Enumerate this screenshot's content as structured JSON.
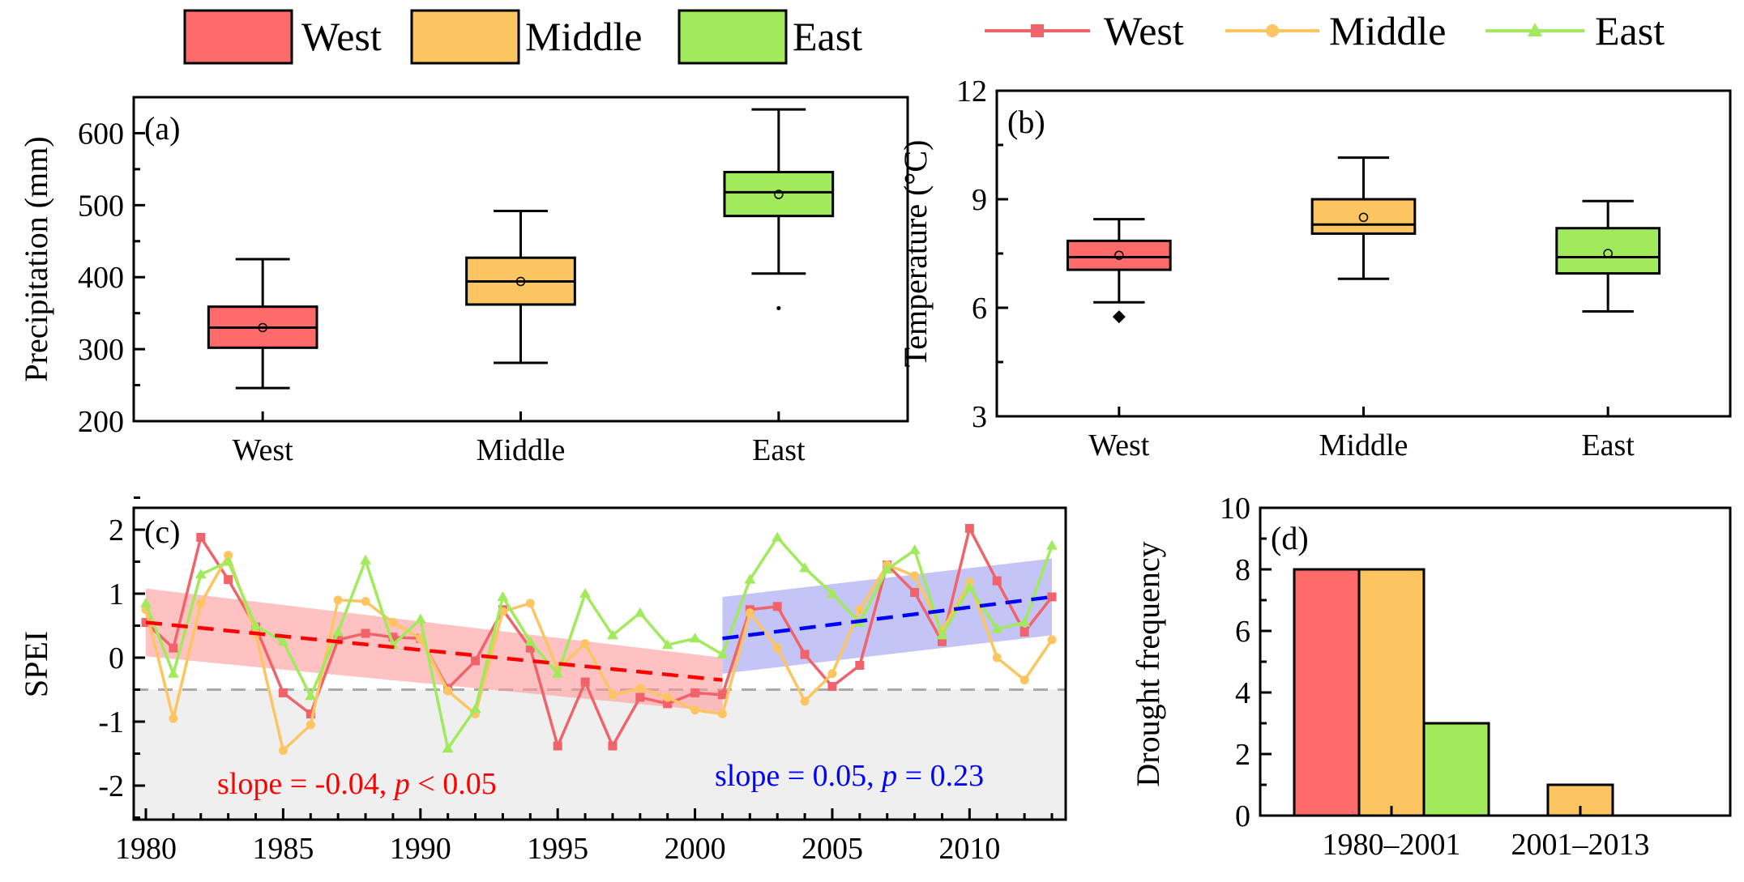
{
  "legend_box": {
    "items": [
      {
        "label": "West",
        "color": "#ff6b6b"
      },
      {
        "label": "Middle",
        "color": "#fcc561"
      },
      {
        "label": "East",
        "color": "#a0ea5c"
      }
    ]
  },
  "legend_line": {
    "items": [
      {
        "label": "West",
        "color": "#f0636b",
        "marker": "square"
      },
      {
        "label": "Middle",
        "color": "#fcc561",
        "marker": "circle"
      },
      {
        "label": "East",
        "color": "#a0ea5c",
        "marker": "triangle"
      }
    ]
  },
  "chart_data": [
    {
      "panel": "(a)",
      "type": "box",
      "ylabel": "Precipitation (mm)",
      "ylim": [
        200,
        650
      ],
      "yticks": [
        "200",
        "300",
        "400",
        "500",
        "600"
      ],
      "categories": [
        "West",
        "Middle",
        "East"
      ],
      "colors": [
        "#ff6b6b",
        "#fcc561",
        "#a0ea5c"
      ],
      "boxes": [
        {
          "min": 246,
          "q1": 302,
          "median": 330,
          "q3": 359,
          "max": 425,
          "mean": 330,
          "outliers": []
        },
        {
          "min": 281,
          "q1": 362,
          "median": 394,
          "q3": 427,
          "max": 492,
          "mean": 394,
          "outliers": []
        },
        {
          "min": 405,
          "q1": 485,
          "median": 518,
          "q3": 546,
          "max": 633,
          "mean": 515,
          "outliers": [
            357
          ]
        }
      ]
    },
    {
      "panel": "(b)",
      "type": "box",
      "ylabel": "Temperature (°C)",
      "ylim": [
        3,
        12
      ],
      "yticks": [
        "3",
        "6",
        "9",
        "12"
      ],
      "categories": [
        "West",
        "Middle",
        "East"
      ],
      "colors": [
        "#ff6b6b",
        "#fcc561",
        "#a0ea5c"
      ],
      "boxes": [
        {
          "min": 6.15,
          "q1": 7.05,
          "median": 7.4,
          "q3": 7.85,
          "max": 8.45,
          "mean": 7.45,
          "outliers": [
            5.75
          ]
        },
        {
          "min": 6.8,
          "q1": 8.05,
          "median": 8.3,
          "q3": 9.0,
          "max": 10.15,
          "mean": 8.5,
          "outliers": []
        },
        {
          "min": 5.9,
          "q1": 6.95,
          "median": 7.4,
          "q3": 8.2,
          "max": 8.95,
          "mean": 7.5,
          "outliers": []
        }
      ]
    },
    {
      "panel": "(c)",
      "type": "line",
      "ylabel": "SPEI",
      "xlim": [
        1980,
        2013
      ],
      "ylim": [
        -2.5,
        2.5
      ],
      "xticks": [
        "1980",
        "1985",
        "1990",
        "1995",
        "2000",
        "2005",
        "2010"
      ],
      "yticks": [
        "2",
        "1",
        "0",
        "-1",
        "-2"
      ],
      "drought_threshold": -0.5,
      "x": [
        1980,
        1981,
        1982,
        1983,
        1984,
        1985,
        1986,
        1987,
        1988,
        1989,
        1990,
        1991,
        1992,
        1993,
        1994,
        1995,
        1996,
        1997,
        1998,
        1999,
        2000,
        2001,
        2002,
        2003,
        2004,
        2005,
        2006,
        2007,
        2008,
        2009,
        2010,
        2011,
        2012,
        2013
      ],
      "series": [
        {
          "name": "West",
          "color": "#f0636b",
          "marker": "square",
          "values": [
            0.55,
            0.15,
            1.88,
            1.22,
            0.48,
            -0.55,
            -0.88,
            0.28,
            0.38,
            0.32,
            0.3,
            -0.48,
            -0.05,
            0.75,
            0.15,
            -1.38,
            -0.38,
            -1.38,
            -0.62,
            -0.72,
            -0.55,
            -0.58,
            0.75,
            0.8,
            0.05,
            -0.45,
            -0.12,
            1.45,
            1.02,
            0.25,
            2.02,
            1.2,
            0.4,
            0.95
          ]
        },
        {
          "name": "Middle",
          "color": "#fcc561",
          "marker": "circle",
          "values": [
            0.75,
            -0.95,
            0.85,
            1.6,
            0.38,
            -1.45,
            -1.05,
            0.9,
            0.88,
            0.55,
            0.3,
            -0.52,
            -0.88,
            0.72,
            0.85,
            -0.18,
            0.22,
            -0.58,
            -0.48,
            -0.62,
            -0.82,
            -0.88,
            0.7,
            0.15,
            -0.68,
            -0.25,
            0.75,
            1.45,
            1.28,
            0.42,
            1.18,
            0.0,
            -0.35,
            0.28
          ]
        },
        {
          "name": "East",
          "color": "#a0ea5c",
          "marker": "triangle",
          "values": [
            0.85,
            -0.25,
            1.3,
            1.5,
            0.5,
            0.25,
            -0.6,
            0.4,
            1.52,
            0.2,
            0.6,
            -1.42,
            -0.8,
            0.95,
            0.25,
            -0.25,
            1.0,
            0.35,
            0.7,
            0.2,
            0.3,
            0.05,
            1.22,
            1.88,
            1.4,
            1.0,
            0.55,
            1.38,
            1.68,
            0.35,
            1.1,
            0.45,
            0.55,
            1.75
          ]
        }
      ],
      "trends": [
        {
          "x": [
            1980,
            2001
          ],
          "y": [
            0.55,
            -0.35
          ],
          "ci_low": [
            0.02,
            -0.85
          ],
          "ci_high": [
            1.08,
            0.0
          ],
          "color": "#ff0000",
          "band": "#ff9a9a",
          "label_slope": "slope = -0.04, ",
          "label_p": "p",
          "label_rest": " < 0.05"
        },
        {
          "x": [
            2001,
            2013
          ],
          "y": [
            0.3,
            0.95
          ],
          "ci_low": [
            -0.25,
            0.35
          ],
          "ci_high": [
            0.95,
            1.55
          ],
          "color": "#0000ff",
          "band": "#9c9cf2",
          "label_slope": "slope = 0.05, ",
          "label_p": "p",
          "label_rest": " = 0.23"
        }
      ]
    },
    {
      "panel": "(d)",
      "type": "bar",
      "ylabel": "Drought frequency",
      "ylim": [
        0,
        10
      ],
      "yticks": [
        "0",
        "2",
        "4",
        "6",
        "8",
        "10"
      ],
      "categories": [
        "1980–2001",
        "2001–2013"
      ],
      "series": [
        {
          "name": "West",
          "color": "#ff6b6b",
          "values": [
            8,
            0
          ]
        },
        {
          "name": "Middle",
          "color": "#fcc561",
          "values": [
            8,
            1
          ]
        },
        {
          "name": "East",
          "color": "#a0ea5c",
          "values": [
            3,
            0
          ]
        }
      ]
    }
  ]
}
